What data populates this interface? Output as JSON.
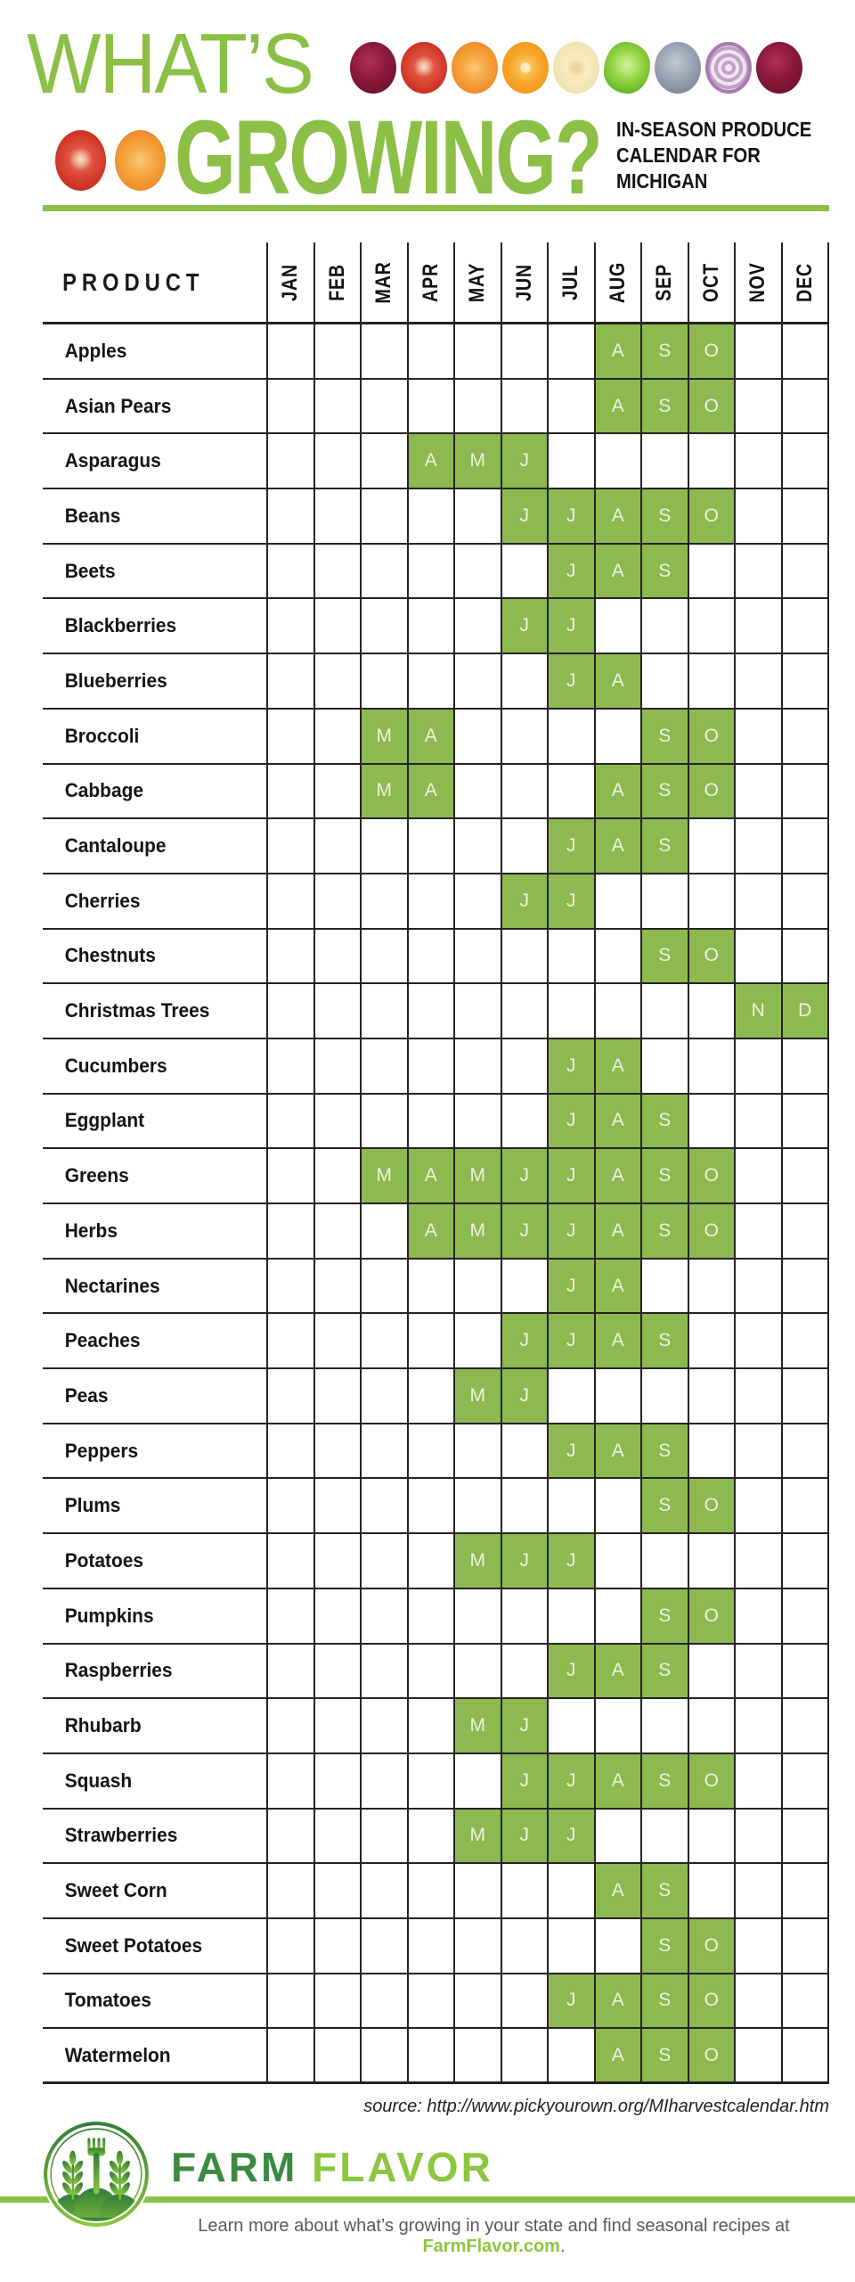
{
  "header": {
    "title_line1": "WHAT’S",
    "title_line2": "GROWING?",
    "subtitle_lines": [
      "IN-SEASON PRODUCE",
      "CALENDAR FOR",
      "MICHIGAN"
    ],
    "produce_row1": [
      "beet",
      "tomato",
      "carrot",
      "orange-slice",
      "banana-slice",
      "lettuce",
      "gray-onion",
      "red-onion-slice",
      "beet"
    ],
    "produce_row2": [
      "tomato-slice",
      "carrot-slice"
    ]
  },
  "table": {
    "product_header": "PRODUCT",
    "months": [
      "JAN",
      "FEB",
      "MAR",
      "APR",
      "MAY",
      "JUN",
      "JUL",
      "AUG",
      "SEP",
      "OCT",
      "NOV",
      "DEC"
    ]
  },
  "chart_data": {
    "type": "heatmap",
    "title": "What’s Growing? In-Season Produce Calendar for Michigan",
    "x_categories": [
      "JAN",
      "FEB",
      "MAR",
      "APR",
      "MAY",
      "JUN",
      "JUL",
      "AUG",
      "SEP",
      "OCT",
      "NOV",
      "DEC"
    ],
    "legend": "Green cell = month in season; cell letter is the month initial",
    "rows": [
      {
        "product": "Apples",
        "in_season": [
          "AUG",
          "SEP",
          "OCT"
        ]
      },
      {
        "product": "Asian Pears",
        "in_season": [
          "AUG",
          "SEP",
          "OCT"
        ]
      },
      {
        "product": "Asparagus",
        "in_season": [
          "APR",
          "MAY",
          "JUN"
        ]
      },
      {
        "product": "Beans",
        "in_season": [
          "JUN",
          "JUL",
          "AUG",
          "SEP",
          "OCT"
        ]
      },
      {
        "product": "Beets",
        "in_season": [
          "JUL",
          "AUG",
          "SEP"
        ]
      },
      {
        "product": "Blackberries",
        "in_season": [
          "JUN",
          "JUL"
        ]
      },
      {
        "product": "Blueberries",
        "in_season": [
          "JUL",
          "AUG"
        ]
      },
      {
        "product": "Broccoli",
        "in_season": [
          "MAR",
          "APR",
          "SEP",
          "OCT"
        ]
      },
      {
        "product": "Cabbage",
        "in_season": [
          "MAR",
          "APR",
          "AUG",
          "SEP",
          "OCT"
        ]
      },
      {
        "product": "Cantaloupe",
        "in_season": [
          "JUL",
          "AUG",
          "SEP"
        ]
      },
      {
        "product": "Cherries",
        "in_season": [
          "JUN",
          "JUL"
        ]
      },
      {
        "product": "Chestnuts",
        "in_season": [
          "SEP",
          "OCT"
        ]
      },
      {
        "product": "Christmas Trees",
        "in_season": [
          "NOV",
          "DEC"
        ]
      },
      {
        "product": "Cucumbers",
        "in_season": [
          "JUL",
          "AUG"
        ]
      },
      {
        "product": "Eggplant",
        "in_season": [
          "JUL",
          "AUG",
          "SEP"
        ]
      },
      {
        "product": "Greens",
        "in_season": [
          "MAR",
          "APR",
          "MAY",
          "JUN",
          "JUL",
          "AUG",
          "SEP",
          "OCT"
        ]
      },
      {
        "product": "Herbs",
        "in_season": [
          "APR",
          "MAY",
          "JUN",
          "JUL",
          "AUG",
          "SEP",
          "OCT"
        ]
      },
      {
        "product": "Nectarines",
        "in_season": [
          "JUL",
          "AUG"
        ]
      },
      {
        "product": "Peaches",
        "in_season": [
          "JUN",
          "JUL",
          "AUG",
          "SEP"
        ]
      },
      {
        "product": "Peas",
        "in_season": [
          "MAY",
          "JUN"
        ]
      },
      {
        "product": "Peppers",
        "in_season": [
          "JUL",
          "AUG",
          "SEP"
        ]
      },
      {
        "product": "Plums",
        "in_season": [
          "SEP",
          "OCT"
        ]
      },
      {
        "product": "Potatoes",
        "in_season": [
          "MAY",
          "JUN",
          "JUL"
        ]
      },
      {
        "product": "Pumpkins",
        "in_season": [
          "SEP",
          "OCT"
        ]
      },
      {
        "product": "Raspberries",
        "in_season": [
          "JUL",
          "AUG",
          "SEP"
        ]
      },
      {
        "product": "Rhubarb",
        "in_season": [
          "MAY",
          "JUN"
        ]
      },
      {
        "product": "Squash",
        "in_season": [
          "JUN",
          "JUL",
          "AUG",
          "SEP",
          "OCT"
        ]
      },
      {
        "product": "Strawberries",
        "in_season": [
          "MAY",
          "JUN",
          "JUL"
        ]
      },
      {
        "product": "Sweet Corn",
        "in_season": [
          "AUG",
          "SEP"
        ]
      },
      {
        "product": "Sweet Potatoes",
        "in_season": [
          "SEP",
          "OCT"
        ]
      },
      {
        "product": "Tomatoes",
        "in_season": [
          "JUL",
          "AUG",
          "SEP",
          "OCT"
        ]
      },
      {
        "product": "Watermelon",
        "in_season": [
          "AUG",
          "SEP",
          "OCT"
        ]
      }
    ]
  },
  "footer": {
    "source_text": "source: http://www.pickyourown.org/MIharvestcalendar.htm",
    "brand_word1": "FARM",
    "brand_word2": "FLAVOR",
    "tagline_prefix": "Learn more about what’s growing in your state and find seasonal recipes at ",
    "tagline_link": "FarmFlavor.com",
    "tagline_suffix": "."
  },
  "colors": {
    "title_green": "#8cbf45",
    "cell_green": "#8cb950",
    "bar_green": "#8cc04a",
    "line_dark": "#262223",
    "farm_dark": "#3c8a41",
    "farm_light": "#8cc63f",
    "text_gray": "#58595b"
  }
}
